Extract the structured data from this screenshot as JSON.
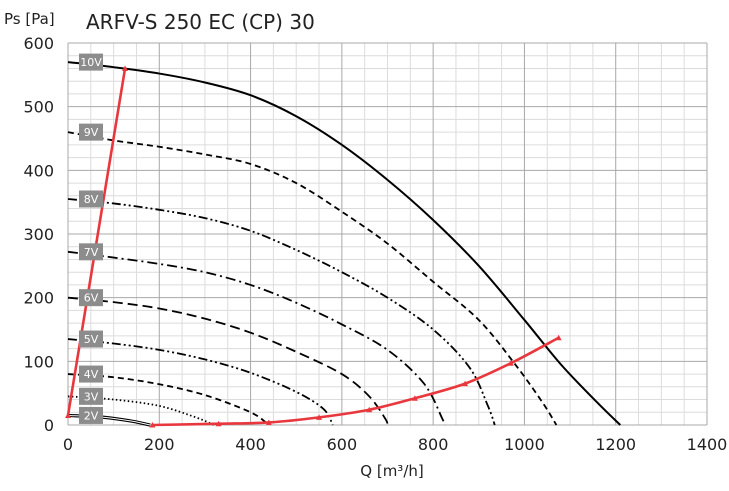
{
  "chart_data": {
    "type": "line",
    "title": "ARFV-S 250 EC (CP) 30",
    "xlabel": "Q [m³/h]",
    "ylabel": "Ps [Pa]",
    "xlim": [
      0,
      1400
    ],
    "ylim": [
      0,
      600
    ],
    "x_ticks": [
      "0",
      "200",
      "400",
      "600",
      "800",
      "1000",
      "1200",
      "1400"
    ],
    "y_ticks": [
      "0",
      "100",
      "200",
      "300",
      "400",
      "500",
      "600"
    ],
    "grid": true,
    "series": [
      {
        "name": "10V",
        "style": "solid",
        "points": [
          [
            0,
            570
          ],
          [
            100,
            562
          ],
          [
            200,
            552
          ],
          [
            300,
            538
          ],
          [
            400,
            518
          ],
          [
            500,
            485
          ],
          [
            600,
            440
          ],
          [
            700,
            385
          ],
          [
            800,
            322
          ],
          [
            900,
            250
          ],
          [
            1000,
            165
          ],
          [
            1080,
            95
          ],
          [
            1160,
            35
          ],
          [
            1210,
            0
          ]
        ]
      },
      {
        "name": "9V",
        "style": "dash",
        "points": [
          [
            0,
            460
          ],
          [
            100,
            447
          ],
          [
            200,
            437
          ],
          [
            300,
            425
          ],
          [
            400,
            410
          ],
          [
            500,
            380
          ],
          [
            600,
            335
          ],
          [
            700,
            285
          ],
          [
            800,
            225
          ],
          [
            900,
            165
          ],
          [
            980,
            95
          ],
          [
            1040,
            35
          ],
          [
            1070,
            0
          ]
        ]
      },
      {
        "name": "8V",
        "style": "dash-dot-dot",
        "points": [
          [
            0,
            355
          ],
          [
            100,
            348
          ],
          [
            200,
            338
          ],
          [
            300,
            325
          ],
          [
            400,
            305
          ],
          [
            500,
            275
          ],
          [
            600,
            240
          ],
          [
            700,
            200
          ],
          [
            800,
            150
          ],
          [
            880,
            90
          ],
          [
            920,
            30
          ],
          [
            935,
            0
          ]
        ]
      },
      {
        "name": "7V",
        "style": "dash-dot",
        "points": [
          [
            0,
            272
          ],
          [
            100,
            263
          ],
          [
            200,
            253
          ],
          [
            300,
            240
          ],
          [
            400,
            220
          ],
          [
            500,
            192
          ],
          [
            600,
            158
          ],
          [
            700,
            118
          ],
          [
            780,
            65
          ],
          [
            820,
            10
          ],
          [
            825,
            0
          ]
        ]
      },
      {
        "name": "6V",
        "style": "long-dash",
        "points": [
          [
            0,
            200
          ],
          [
            100,
            193
          ],
          [
            200,
            183
          ],
          [
            300,
            167
          ],
          [
            400,
            145
          ],
          [
            500,
            115
          ],
          [
            600,
            80
          ],
          [
            660,
            45
          ],
          [
            695,
            10
          ],
          [
            700,
            0
          ]
        ]
      },
      {
        "name": "5V",
        "style": "dash-dot-dot",
        "points": [
          [
            0,
            135
          ],
          [
            100,
            128
          ],
          [
            200,
            118
          ],
          [
            300,
            103
          ],
          [
            400,
            82
          ],
          [
            500,
            52
          ],
          [
            560,
            25
          ],
          [
            580,
            0
          ]
        ]
      },
      {
        "name": "4V",
        "style": "dash",
        "points": [
          [
            0,
            80
          ],
          [
            100,
            75
          ],
          [
            200,
            64
          ],
          [
            300,
            47
          ],
          [
            400,
            20
          ],
          [
            440,
            0
          ]
        ]
      },
      {
        "name": "3V",
        "style": "dotted",
        "points": [
          [
            0,
            45
          ],
          [
            100,
            40
          ],
          [
            200,
            30
          ],
          [
            280,
            12
          ],
          [
            320,
            0
          ]
        ]
      },
      {
        "name": "2V",
        "style": "double",
        "points": [
          [
            0,
            15
          ],
          [
            80,
            12
          ],
          [
            140,
            6
          ],
          [
            180,
            0
          ]
        ]
      }
    ],
    "system_curves": [
      {
        "style": "solid-red",
        "points": [
          [
            0,
            15
          ],
          [
            125,
            560
          ]
        ]
      },
      {
        "style": "solid-red",
        "points": [
          [
            185,
            0
          ],
          [
            330,
            2
          ],
          [
            440,
            4
          ],
          [
            550,
            12
          ],
          [
            660,
            24
          ],
          [
            760,
            42
          ],
          [
            870,
            65
          ],
          [
            970,
            97
          ],
          [
            1075,
            137
          ]
        ]
      }
    ],
    "colors": {
      "curve": "#000000",
      "system": "#e8383d",
      "label_bg": "#8c8c8c",
      "grid": "#c8c8c8"
    }
  }
}
